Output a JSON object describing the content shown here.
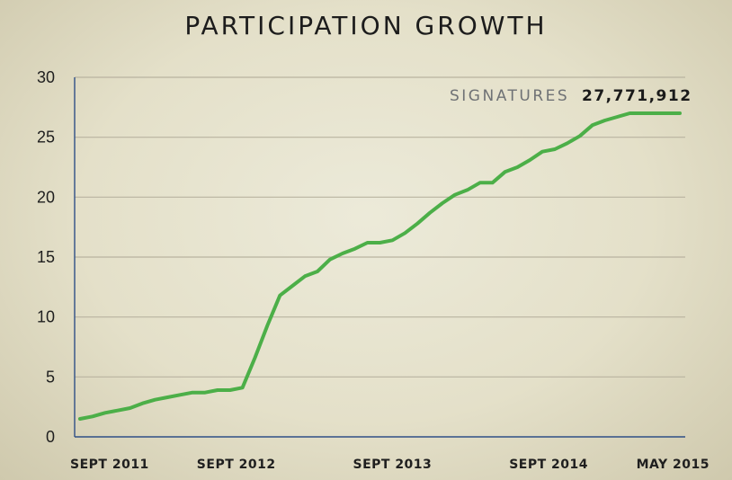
{
  "chart_data": {
    "type": "line",
    "title": "PARTICIPATION GROWTH",
    "xlabel": "",
    "ylabel": "",
    "ylim": [
      0,
      30
    ],
    "yticks": [
      0,
      5,
      10,
      15,
      20,
      25,
      30
    ],
    "xtick_labels": [
      "SEPT 2011",
      "SEPT 2012",
      "SEPT 2013",
      "SEPT 2014",
      "MAY 2015"
    ],
    "xtick_positions": [
      0.5,
      12.5,
      25,
      37.5,
      48
    ],
    "grid": true,
    "annotation": {
      "label": "SIGNATURES",
      "value": "27,771,912"
    },
    "colors": {
      "line": "#4caf48",
      "axis": "#2f4f86",
      "grid": "#b9b3a0"
    },
    "series": [
      {
        "x": [
          0,
          1,
          2,
          3,
          4,
          5,
          6,
          7,
          8,
          9,
          10,
          11,
          12,
          13,
          14,
          15,
          16,
          17,
          18,
          19,
          20,
          21,
          22,
          23,
          24,
          25,
          26,
          27,
          28,
          29,
          30,
          31,
          32,
          33,
          34,
          35,
          36,
          37,
          38,
          39,
          40,
          41,
          42,
          43,
          44,
          45,
          46,
          47,
          48
        ],
        "values": [
          1.5,
          1.7,
          2.0,
          2.2,
          2.4,
          2.8,
          3.1,
          3.3,
          3.5,
          3.7,
          3.7,
          3.9,
          3.9,
          4.1,
          6.6,
          9.3,
          11.8,
          12.6,
          13.4,
          13.8,
          14.8,
          15.3,
          15.7,
          16.2,
          16.2,
          16.4,
          17.0,
          17.8,
          18.7,
          19.5,
          20.2,
          20.6,
          21.2,
          21.2,
          22.1,
          22.5,
          23.1,
          23.8,
          24.0,
          24.5,
          25.1,
          26.0,
          26.4,
          26.7,
          27.0,
          27.0,
          27.0,
          27.0,
          27.0
        ]
      }
    ]
  }
}
